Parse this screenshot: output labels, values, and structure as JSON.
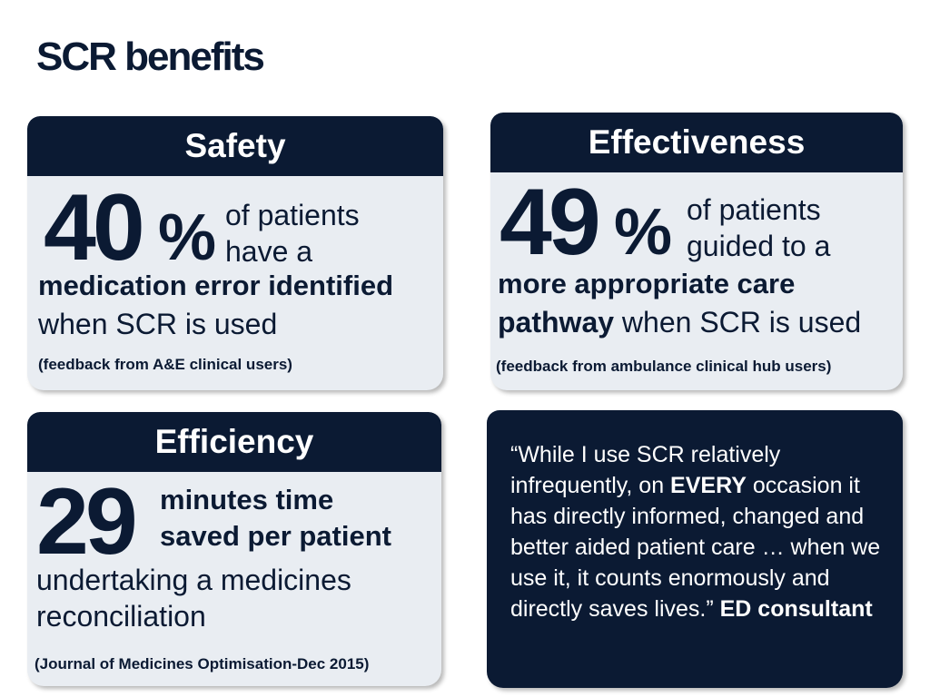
{
  "title": "SCR benefits",
  "safety": {
    "heading": "Safety",
    "number": "40",
    "percent": "%",
    "line1": "of patients",
    "line2": "have a",
    "bold_line": "medication error identified",
    "line3": "when SCR is used",
    "source": "(feedback from A&E clinical users)"
  },
  "effectiveness": {
    "heading": "Effectiveness",
    "number": "49",
    "percent": "%",
    "line1": "of patients",
    "line2": "guided to a",
    "bold_line1": "more appropriate care",
    "bold_word": "pathway",
    "line3": " when SCR is used",
    "source": "(feedback from ambulance clinical hub users)"
  },
  "efficiency": {
    "heading": "Efficiency",
    "number": "29",
    "bold_line1": "minutes time",
    "bold_line2": "saved per patient",
    "line1": "undertaking a medicines",
    "line2": "reconciliation",
    "source": "(Journal of Medicines Optimisation-Dec 2015)"
  },
  "quote": {
    "part1": "“While I use SCR relatively infrequently, on ",
    "emphasis": "EVERY",
    "part2": " occasion it has directly informed, changed and better aided patient care … when we use it, it counts enormously and directly saves lives.” ",
    "attribution": "ED consultant"
  }
}
